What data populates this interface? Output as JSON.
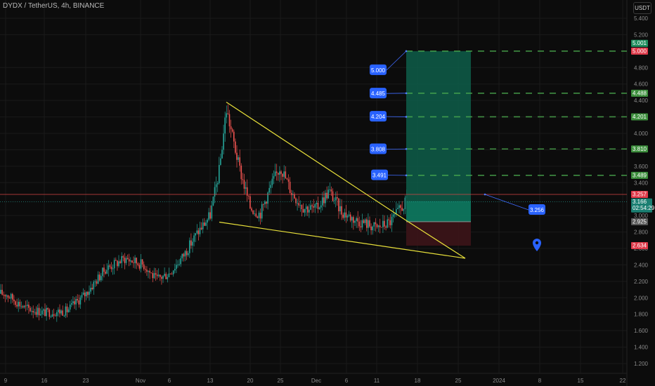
{
  "header": {
    "title": "DYDX / TetherUS, 4h, BINANCE",
    "currency": "USDT"
  },
  "colors": {
    "background": "#0c0c0c",
    "grid": "#1a1a1a",
    "up": "#26a69a",
    "down": "#ef5350",
    "wedge": "#e8e03a",
    "target_dash": "#4caf50",
    "callout": "#2962ff",
    "profit_zone": "#0e5e4a",
    "stop_zone": "#3a1418",
    "current_line": "#d64545"
  },
  "chart_data": {
    "type": "candlestick",
    "x_axis": {
      "labels": [
        "9",
        "16",
        "23",
        "Nov",
        "6",
        "13",
        "20",
        "25",
        "Dec",
        "6",
        "11",
        "18",
        "25",
        "2024",
        "8",
        "15",
        "22"
      ]
    },
    "y_axis": {
      "scale": "linear",
      "ylim": [
        1.1,
        5.5
      ],
      "ticks": [
        "5.400",
        "5.200",
        "4.800",
        "4.600",
        "4.400",
        "4.200",
        "4.000",
        "3.800",
        "3.600",
        "3.400",
        "3.000",
        "2.800",
        "2.600",
        "2.400",
        "2.200",
        "2.000",
        "1.800",
        "1.600",
        "1.400",
        "1.200"
      ]
    },
    "price_path": [
      {
        "t": "9",
        "price": 2.05
      },
      {
        "t": "12",
        "price": 1.88
      },
      {
        "t": "16",
        "price": 1.82
      },
      {
        "t": "20",
        "price": 1.84
      },
      {
        "t": "23",
        "price": 2.05
      },
      {
        "t": "26",
        "price": 2.35
      },
      {
        "t": "29",
        "price": 2.48
      },
      {
        "t": "Nov 1",
        "price": 2.4
      },
      {
        "t": "Nov 3",
        "price": 2.22
      },
      {
        "t": "Nov 6",
        "price": 2.3
      },
      {
        "t": "Nov 9",
        "price": 2.5
      },
      {
        "t": "Nov 11",
        "price": 2.78
      },
      {
        "t": "Nov 13",
        "price": 3.0
      },
      {
        "t": "Nov 14",
        "price": 3.55
      },
      {
        "t": "Nov 15",
        "price": 4.3
      },
      {
        "t": "Nov 17",
        "price": 3.6
      },
      {
        "t": "Nov 19",
        "price": 3.1
      },
      {
        "t": "Nov 21",
        "price": 3.02
      },
      {
        "t": "Nov 23",
        "price": 3.35
      },
      {
        "t": "Nov 25",
        "price": 3.6
      },
      {
        "t": "Nov 27",
        "price": 3.28
      },
      {
        "t": "Nov 29",
        "price": 3.1
      },
      {
        "t": "Dec 1",
        "price": 3.08
      },
      {
        "t": "Dec 3",
        "price": 3.3
      },
      {
        "t": "Dec 5",
        "price": 3.05
      },
      {
        "t": "Dec 7",
        "price": 2.95
      },
      {
        "t": "Dec 9",
        "price": 2.9
      },
      {
        "t": "Dec 11",
        "price": 2.85
      },
      {
        "t": "Dec 13",
        "price": 2.92
      },
      {
        "t": "Dec 15",
        "price": 3.166
      }
    ],
    "falling_wedge": {
      "upper_line": {
        "from": {
          "t": "Nov 15",
          "price": 4.38
        },
        "to": {
          "t": "Dec 15",
          "price": 2.94
        }
      },
      "lower_line": {
        "from": {
          "t": "Nov 14",
          "price": 2.92
        },
        "to": {
          "t": "Dec 26",
          "price": 2.48
        }
      },
      "apex": {
        "t": "Dec 26",
        "price": 2.48
      }
    },
    "long_position": {
      "entry": 2.925,
      "stop": 2.634,
      "target": 5.0
    },
    "targets": [
      {
        "callout": "5.000",
        "axis_label": "5.000"
      },
      {
        "callout": "4.485",
        "axis_label": "4.488"
      },
      {
        "callout": "4.204",
        "axis_label": "4.201"
      },
      {
        "callout": "3.808",
        "axis_label": "3.810"
      },
      {
        "callout": "3.491",
        "axis_label": "3.489"
      }
    ],
    "price_labels": {
      "top": "5.001",
      "horizontal_line": "3.257",
      "current": "3.166",
      "countdown": "02:54:29",
      "entry": "2.925",
      "stop": "2.634"
    },
    "line_callout": "3.256"
  }
}
